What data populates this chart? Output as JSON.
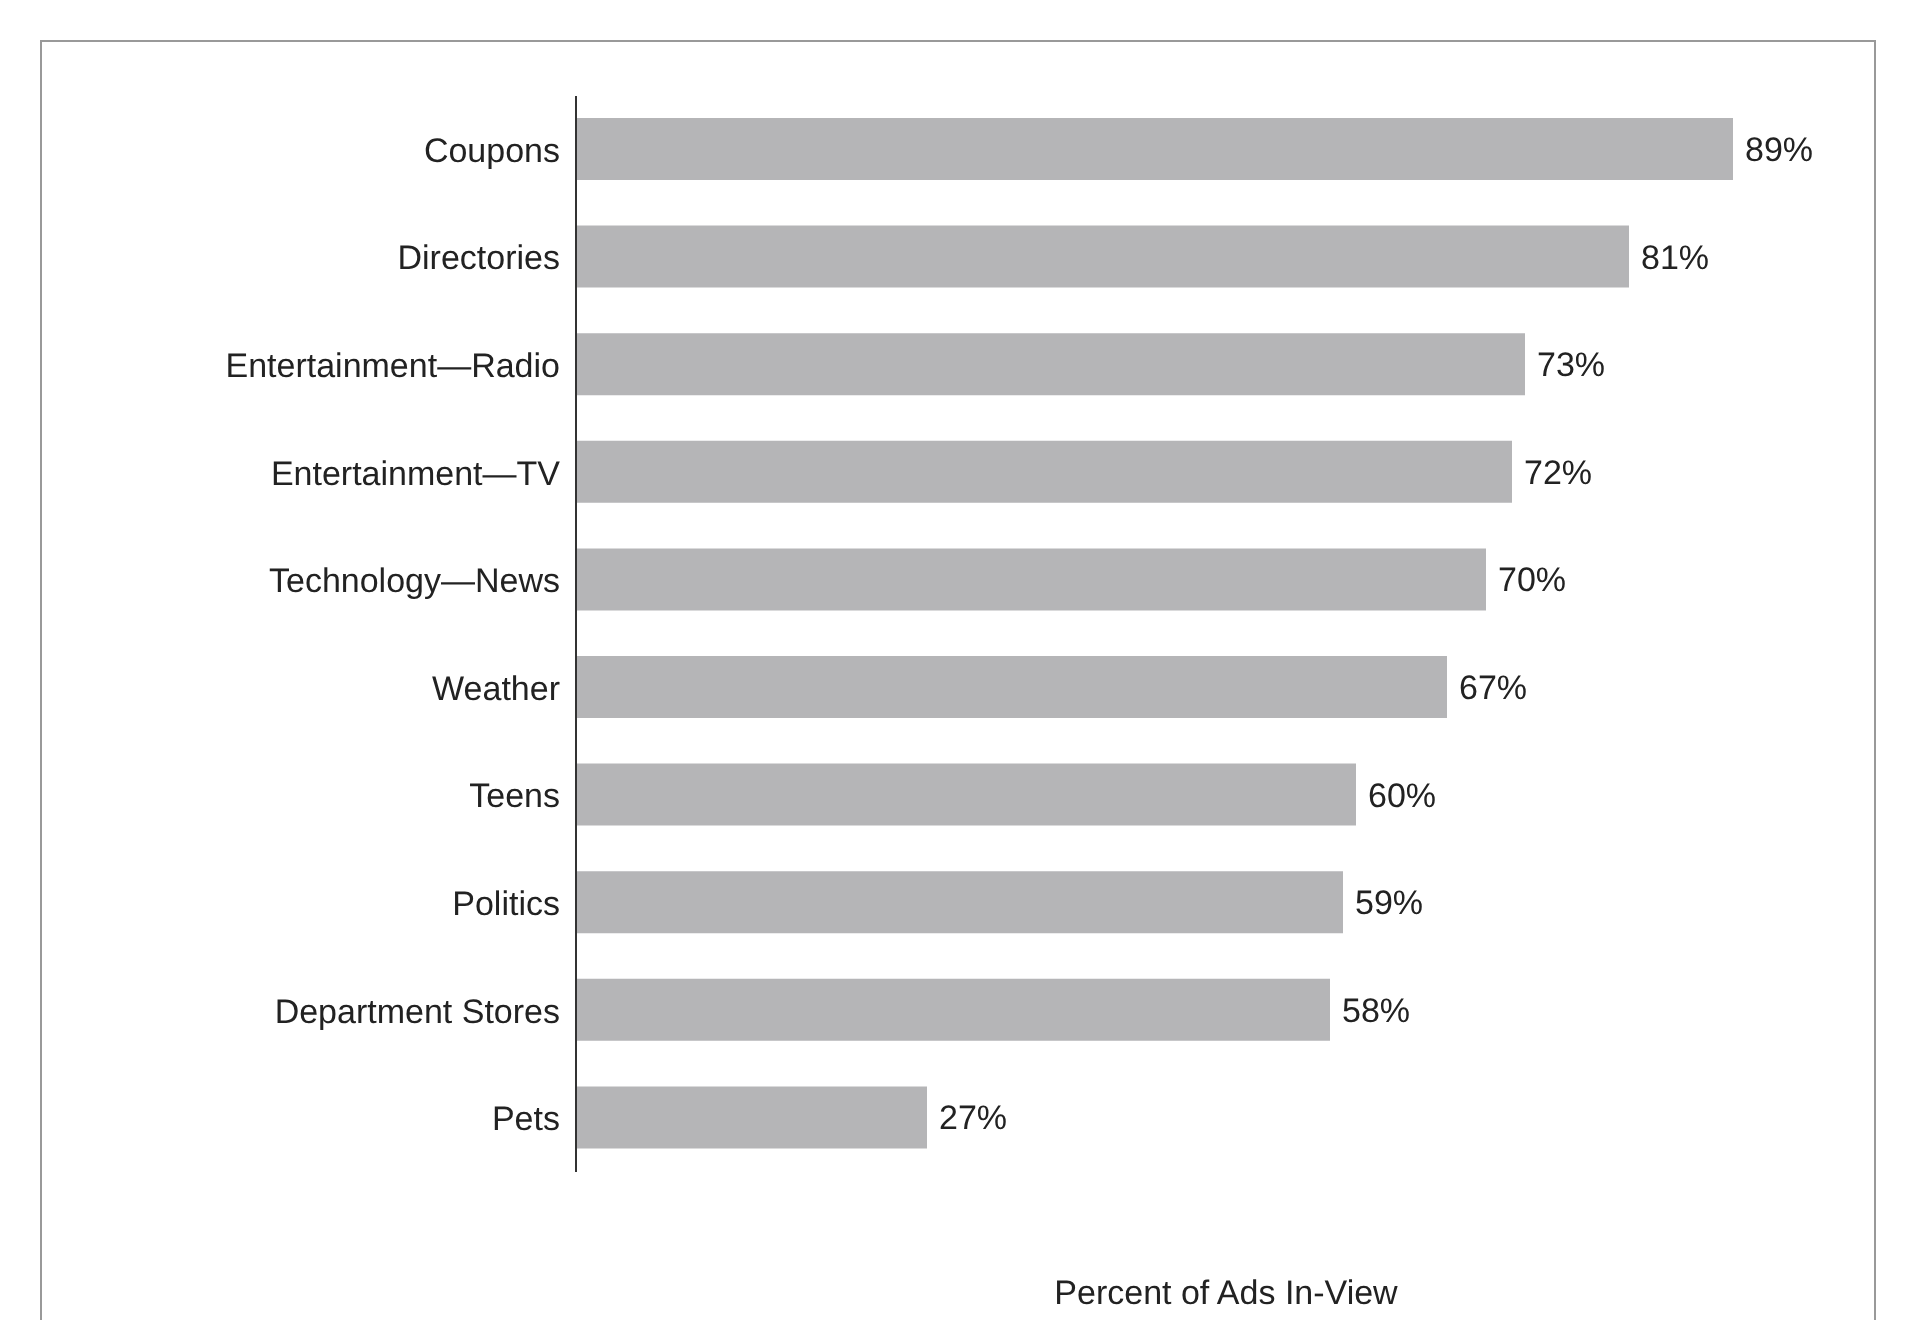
{
  "chart_data": {
    "type": "bar",
    "orientation": "horizontal",
    "xlabel": "Percent of Ads In-View",
    "categories": [
      "Coupons",
      "Directories",
      "Entertainment—Radio",
      "Entertainment—TV",
      "Technology—News",
      "Weather",
      "Teens",
      "Politics",
      "Department Stores",
      "Pets"
    ],
    "values": [
      89,
      81,
      73,
      72,
      70,
      67,
      60,
      59,
      58,
      27
    ],
    "value_labels": [
      "89%",
      "81%",
      "73%",
      "72%",
      "70%",
      "67%",
      "60%",
      "59%",
      "58%",
      "27%"
    ],
    "color": "#b5b5b7",
    "xlim": [
      0,
      100
    ],
    "tick_labels": "y",
    "grid": false,
    "legend": false
  }
}
